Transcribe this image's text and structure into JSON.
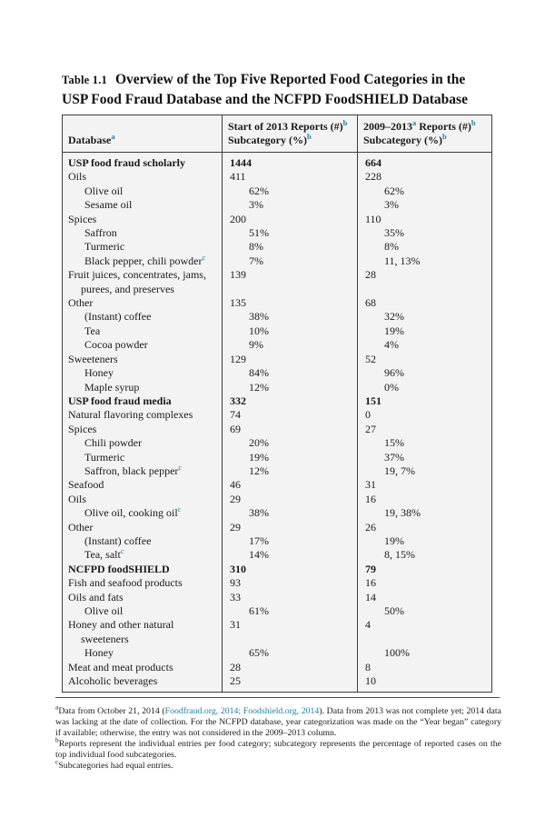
{
  "colors": {
    "accent": "#1f7fa3",
    "text": "#1a1a1a",
    "border": "#3d3d3d",
    "table_background": "#f3f3f3"
  },
  "caption": {
    "label": "Table 1.1",
    "title": "Overview of the Top Five Reported Food Categories in the USP Food Fraud Database and the NCFPD FoodSHIELD Database"
  },
  "table": {
    "header": {
      "cells": [
        {
          "lines": [
            {
              "segs": [
                {
                  "t": "Database"
                },
                {
                  "t": "a",
                  "sup": true
                }
              ]
            }
          ]
        },
        {
          "lines": [
            {
              "segs": [
                {
                  "t": "Start of 2013 Reports (#)"
                },
                {
                  "t": "b",
                  "sup": true
                }
              ]
            },
            {
              "segs": [
                {
                  "t": "Subcategory (%)"
                },
                {
                  "t": "b",
                  "sup": true
                }
              ]
            }
          ]
        },
        {
          "lines": [
            {
              "segs": [
                {
                  "t": "2009–2013"
                },
                {
                  "t": "a",
                  "sup": true
                },
                {
                  "t": " Reports (#)"
                },
                {
                  "t": "b",
                  "sup": true
                }
              ]
            },
            {
              "segs": [
                {
                  "t": "Subcategory (%)"
                },
                {
                  "t": "b",
                  "sup": true
                }
              ]
            }
          ]
        }
      ]
    },
    "rows": [
      {
        "label": "USP food fraud scholarly",
        "bold": true,
        "c2": "1444",
        "c3": "664"
      },
      {
        "label": "Oils",
        "c2": "411",
        "c3": "228"
      },
      {
        "label": "Olive oil",
        "indent": true,
        "pct": true,
        "c2": "62%",
        "c3": "62%"
      },
      {
        "label": "Sesame oil",
        "indent": true,
        "pct": true,
        "c2": "3%",
        "c3": "3%"
      },
      {
        "label": "Spices",
        "c2": "200",
        "c3": "110"
      },
      {
        "label": "Saffron",
        "indent": true,
        "pct": true,
        "c2": "51%",
        "c3": "35%"
      },
      {
        "label": "Turmeric",
        "indent": true,
        "pct": true,
        "c2": "8%",
        "c3": "8%"
      },
      {
        "label": "Black pepper, chili powder",
        "sup": "c",
        "indent": true,
        "pct": true,
        "c2": "7%",
        "c3": "11, 13%"
      },
      {
        "label": "Fruit juices, concentrates, jams, purees, and preserves",
        "c2": "139",
        "c3": "28"
      },
      {
        "label": "Other",
        "c2": "135",
        "c3": "68"
      },
      {
        "label": "(Instant) coffee",
        "indent": true,
        "pct": true,
        "c2": "38%",
        "c3": "32%"
      },
      {
        "label": "Tea",
        "indent": true,
        "pct": true,
        "c2": "10%",
        "c3": "19%"
      },
      {
        "label": "Cocoa powder",
        "indent": true,
        "pct": true,
        "c2": "9%",
        "c3": "4%"
      },
      {
        "label": "Sweeteners",
        "c2": "129",
        "c3": "52"
      },
      {
        "label": "Honey",
        "indent": true,
        "pct": true,
        "c2": "84%",
        "c3": "96%"
      },
      {
        "label": "Maple syrup",
        "indent": true,
        "pct": true,
        "c2": "12%",
        "c3": "0%"
      },
      {
        "label": "USP food fraud media",
        "bold": true,
        "c2": "332",
        "c3": "151"
      },
      {
        "label": "Natural flavoring complexes",
        "c2": "74",
        "c3": "0"
      },
      {
        "label": "Spices",
        "c2": "69",
        "c3": "27"
      },
      {
        "label": "Chili powder",
        "indent": true,
        "pct": true,
        "c2": "20%",
        "c3": "15%"
      },
      {
        "label": "Turmeric",
        "indent": true,
        "pct": true,
        "c2": "19%",
        "c3": "37%"
      },
      {
        "label": "Saffron, black pepper",
        "sup": "c",
        "indent": true,
        "pct": true,
        "c2": "12%",
        "c3": "19, 7%"
      },
      {
        "label": "Seafood",
        "c2": "46",
        "c3": "31"
      },
      {
        "label": "Oils",
        "c2": "29",
        "c3": "16"
      },
      {
        "label": "Olive oil, cooking oil",
        "sup": "c",
        "indent": true,
        "pct": true,
        "c2": "38%",
        "c3": "19, 38%"
      },
      {
        "label": "Other",
        "c2": "29",
        "c3": "26"
      },
      {
        "label": "(Instant) coffee",
        "indent": true,
        "pct": true,
        "c2": "17%",
        "c3": "19%"
      },
      {
        "label": "Tea, salt",
        "sup": "c",
        "indent": true,
        "pct": true,
        "c2": "14%",
        "c3": "8, 15%"
      },
      {
        "label": "NCFPD foodSHIELD",
        "bold": true,
        "c2": "310",
        "c3": "79"
      },
      {
        "label": "Fish and seafood products",
        "c2": "93",
        "c3": "16"
      },
      {
        "label": "Oils and fats",
        "c2": "33",
        "c3": "14"
      },
      {
        "label": "Olive oil",
        "indent": true,
        "pct": true,
        "c2": "61%",
        "c3": "50%"
      },
      {
        "label": "Honey and other natural sweeteners",
        "c2": "31",
        "c3": "4"
      },
      {
        "label": "Honey",
        "indent": true,
        "pct": true,
        "c2": "65%",
        "c3": "100%"
      },
      {
        "label": "Meat and meat products",
        "c2": "28",
        "c3": "8"
      },
      {
        "label": "Alcoholic beverages",
        "c2": "25",
        "c3": "10"
      }
    ]
  },
  "footnotes": [
    {
      "segs": [
        {
          "t": "a",
          "sup": true
        },
        {
          "t": "Data from October 21, 2014 ("
        },
        {
          "t": "Foodfraud.org, 2014; Foodshield.org, 2014",
          "link": true
        },
        {
          "t": "). Data from 2013 was not complete yet; 2014 data was lacking at the date of collection. For the NCFPD database, year categorization was made on the “Year began” category if available; otherwise, the entry was not considered in the 2009–2013 column."
        }
      ]
    },
    {
      "segs": [
        {
          "t": "b",
          "sup": true
        },
        {
          "t": "Reports represent the individual entries per food category; subcategory represents the percentage of reported cases on the top individual food subcategories."
        }
      ]
    },
    {
      "segs": [
        {
          "t": "c",
          "sup": true
        },
        {
          "t": "Subcategories had equal entries."
        }
      ]
    }
  ]
}
